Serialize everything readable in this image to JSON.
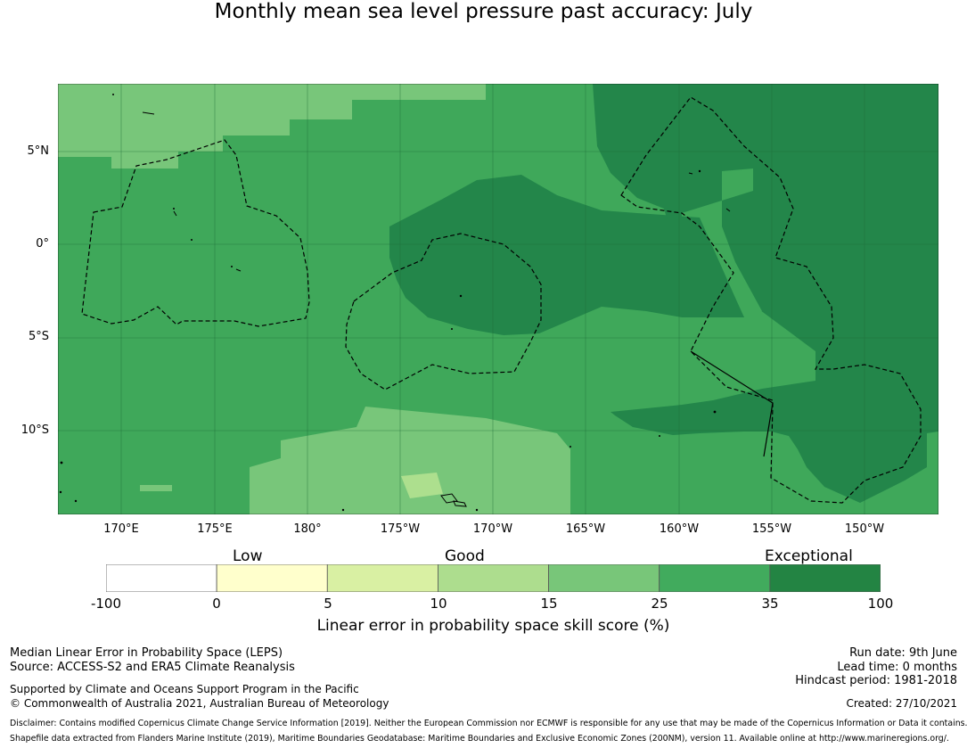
{
  "title": "Monthly mean sea level pressure past accuracy: July",
  "map": {
    "lat_labels": [
      "5°N",
      "0°",
      "5°S",
      "10°S"
    ],
    "lon_labels": [
      "170°E",
      "175°E",
      "180°",
      "175°W",
      "170°W",
      "165°W",
      "160°W",
      "155°W",
      "150°W"
    ],
    "colors": {
      "exceptional_dark": "#23864a",
      "good_mid": "#3fa85a",
      "good_light": "#78c67a",
      "good_pale": "#addf8e"
    }
  },
  "colorbar": {
    "category_labels": [
      "Low",
      "Good",
      "Exceptional"
    ],
    "ticks": [
      "-100",
      "0",
      "5",
      "10",
      "15",
      "25",
      "35",
      "100"
    ],
    "colors": [
      "#ffffff",
      "#ffffcc",
      "#d9f0a3",
      "#addd8e",
      "#78c679",
      "#41ab5d",
      "#238443"
    ],
    "xlabel": "Linear error in probability space skill score (%)"
  },
  "footer": {
    "left_line1": "Median Linear Error in Probability Space (LEPS)",
    "left_line2": "Source: ACCESS-S2 and ERA5 Climate Reanalysis",
    "left_line3": "Supported by Climate and Oceans Support Program in the Pacific",
    "left_line4": "© Commonwealth of Australia 2021, Australian Bureau of Meteorology",
    "right_line1": "Run date: 9th June",
    "right_line2": "Lead time: 0 months",
    "right_line3": "Hindcast period: 1981-2018",
    "right_line4": "Created: 27/10/2021",
    "disclaimer1": "Disclaimer: Contains modified Copernicus Climate Change Service Information [2019]. Neither the European Commission nor ECMWF is responsible for any use that may be made of the Copernicus Information or Data it contains.",
    "disclaimer2": "Shapefile data extracted from Flanders Marine Institute (2019), Maritime Boundaries Geodatabase: Maritime Boundaries and Exclusive Economic Zones (200NM), version 11. Available online at http://www.marineregions.org/."
  }
}
